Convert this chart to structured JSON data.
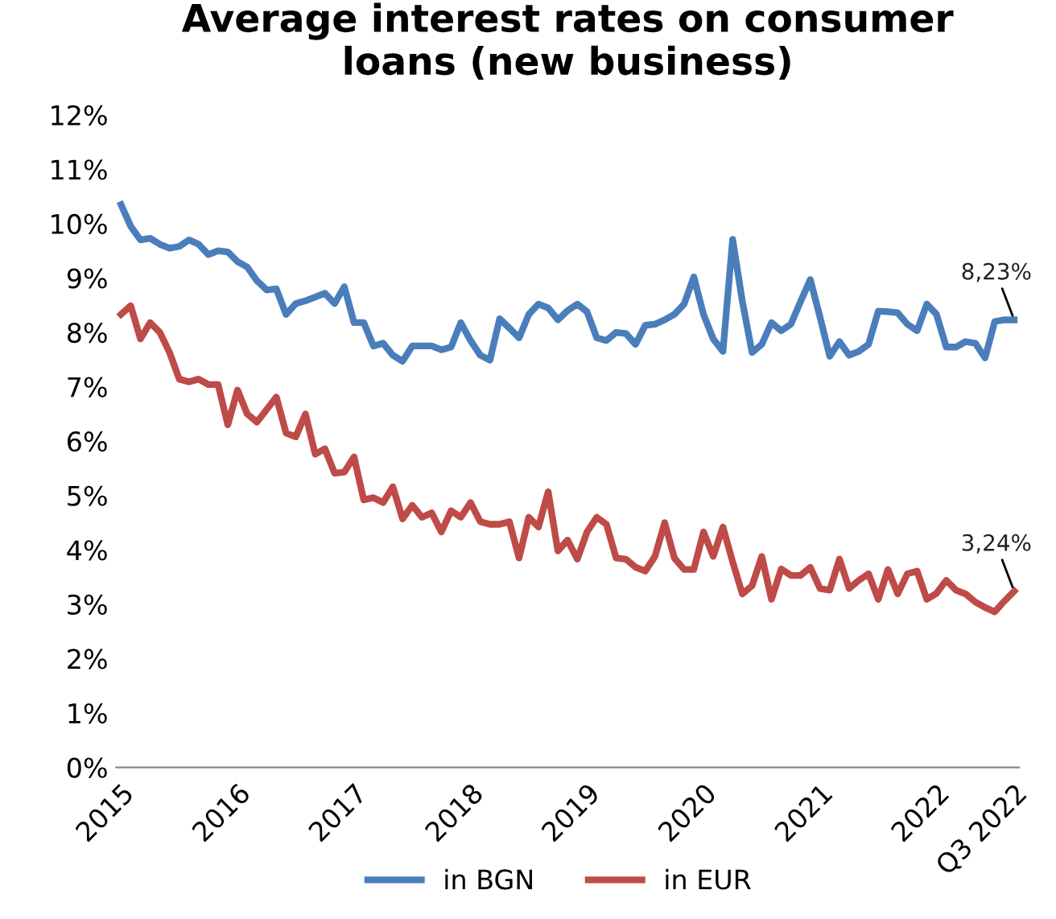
{
  "chart_data": {
    "type": "line",
    "title": "Average interest rates on consumer\nloans (new business)",
    "categories": [
      "2015",
      null,
      null,
      null,
      null,
      null,
      null,
      null,
      null,
      null,
      null,
      null,
      "2016",
      null,
      null,
      null,
      null,
      null,
      null,
      null,
      null,
      null,
      null,
      null,
      "2017",
      null,
      null,
      null,
      null,
      null,
      null,
      null,
      null,
      null,
      null,
      null,
      "2018",
      null,
      null,
      null,
      null,
      null,
      null,
      null,
      null,
      null,
      null,
      null,
      "2019",
      null,
      null,
      null,
      null,
      null,
      null,
      null,
      null,
      null,
      null,
      null,
      "2020",
      null,
      null,
      null,
      null,
      null,
      null,
      null,
      null,
      null,
      null,
      null,
      "2021",
      null,
      null,
      null,
      null,
      null,
      null,
      null,
      null,
      null,
      null,
      null,
      "2022",
      null,
      null,
      null,
      null,
      null,
      null,
      null,
      "Q3 2022"
    ],
    "series": [
      {
        "name": "in BGN",
        "color": "#4a7ebb",
        "values": [
          10.35,
          9.95,
          9.7,
          9.73,
          9.62,
          9.55,
          9.58,
          9.7,
          9.62,
          9.43,
          9.5,
          9.48,
          9.3,
          9.2,
          8.95,
          8.78,
          8.8,
          8.33,
          8.53,
          8.58,
          8.65,
          8.72,
          8.53,
          8.84,
          8.18,
          8.18,
          7.75,
          7.8,
          7.58,
          7.47,
          7.75,
          7.75,
          7.75,
          7.68,
          7.73,
          8.18,
          7.85,
          7.58,
          7.49,
          8.25,
          8.08,
          7.9,
          8.33,
          8.52,
          8.45,
          8.23,
          8.4,
          8.52,
          8.38,
          7.9,
          7.85,
          8.0,
          7.98,
          7.78,
          8.13,
          8.15,
          8.23,
          8.33,
          8.52,
          9.02,
          8.33,
          7.88,
          7.65,
          9.71,
          8.57,
          7.63,
          7.78,
          8.18,
          8.03,
          8.15,
          8.57,
          8.97,
          8.28,
          7.56,
          7.83,
          7.58,
          7.65,
          7.78,
          8.39,
          8.38,
          8.36,
          8.15,
          8.03,
          8.52,
          8.33,
          7.73,
          7.73,
          7.83,
          7.8,
          7.53,
          8.2,
          8.23,
          8.23
        ],
        "value_labels": [
          null,
          null,
          null,
          null,
          null,
          null,
          null,
          null,
          null,
          null,
          null,
          null,
          null,
          null,
          null,
          null,
          null,
          null,
          null,
          null,
          null,
          null,
          null,
          null,
          null,
          null,
          null,
          null,
          null,
          null,
          null,
          null,
          null,
          null,
          null,
          null,
          null,
          null,
          null,
          null,
          null,
          null,
          null,
          null,
          null,
          null,
          null,
          null,
          null,
          null,
          null,
          null,
          null,
          null,
          null,
          null,
          null,
          null,
          null,
          null,
          null,
          null,
          null,
          null,
          null,
          null,
          null,
          null,
          null,
          null,
          null,
          null,
          null,
          null,
          null,
          null,
          null,
          null,
          null,
          null,
          null,
          null,
          null,
          null,
          null,
          null,
          null,
          null,
          null,
          null,
          null,
          null,
          "8,23%"
        ]
      },
      {
        "name": "in EUR",
        "color": "#be4b48",
        "values": [
          8.33,
          8.49,
          7.88,
          8.18,
          8.0,
          7.63,
          7.14,
          7.09,
          7.14,
          7.04,
          7.04,
          6.3,
          6.94,
          6.5,
          6.35,
          6.58,
          6.81,
          6.15,
          6.08,
          6.5,
          5.76,
          5.86,
          5.41,
          5.43,
          5.71,
          4.92,
          4.96,
          4.87,
          5.16,
          4.57,
          4.82,
          4.6,
          4.68,
          4.33,
          4.72,
          4.6,
          4.87,
          4.52,
          4.47,
          4.47,
          4.52,
          3.85,
          4.6,
          4.42,
          5.07,
          3.98,
          4.18,
          3.83,
          4.33,
          4.6,
          4.47,
          3.85,
          3.83,
          3.68,
          3.61,
          3.88,
          4.5,
          3.85,
          3.64,
          3.64,
          4.33,
          3.88,
          4.42,
          3.78,
          3.19,
          3.34,
          3.88,
          3.09,
          3.65,
          3.53,
          3.53,
          3.68,
          3.29,
          3.26,
          3.83,
          3.29,
          3.44,
          3.56,
          3.09,
          3.64,
          3.19,
          3.56,
          3.61,
          3.09,
          3.2,
          3.44,
          3.26,
          3.19,
          3.04,
          2.94,
          2.86,
          3.06,
          3.24
        ],
        "value_labels": [
          null,
          null,
          null,
          null,
          null,
          null,
          null,
          null,
          null,
          null,
          null,
          null,
          null,
          null,
          null,
          null,
          null,
          null,
          null,
          null,
          null,
          null,
          null,
          null,
          null,
          null,
          null,
          null,
          null,
          null,
          null,
          null,
          null,
          null,
          null,
          null,
          null,
          null,
          null,
          null,
          null,
          null,
          null,
          null,
          null,
          null,
          null,
          null,
          null,
          null,
          null,
          null,
          null,
          null,
          null,
          null,
          null,
          null,
          null,
          null,
          null,
          null,
          null,
          null,
          null,
          null,
          null,
          null,
          null,
          null,
          null,
          null,
          null,
          null,
          null,
          null,
          null,
          null,
          null,
          null,
          null,
          null,
          null,
          null,
          null,
          null,
          null,
          null,
          null,
          null,
          null,
          null,
          "3,24%"
        ]
      }
    ],
    "ylim": [
      0,
      12
    ],
    "yticks": [
      {
        "value": 0,
        "label": "0%"
      },
      {
        "value": 1,
        "label": "1%"
      },
      {
        "value": 2,
        "label": "2%"
      },
      {
        "value": 3,
        "label": "3%"
      },
      {
        "value": 4,
        "label": "4%"
      },
      {
        "value": 5,
        "label": "5%"
      },
      {
        "value": 6,
        "label": "6%"
      },
      {
        "value": 7,
        "label": "7%"
      },
      {
        "value": 8,
        "label": "8%"
      },
      {
        "value": 9,
        "label": "9%"
      },
      {
        "value": 10,
        "label": "10%"
      },
      {
        "value": 11,
        "label": "11%"
      },
      {
        "value": 12,
        "label": "12%"
      }
    ],
    "legend": "bottom",
    "grid": false,
    "marker": "none",
    "line_style": "solid"
  }
}
